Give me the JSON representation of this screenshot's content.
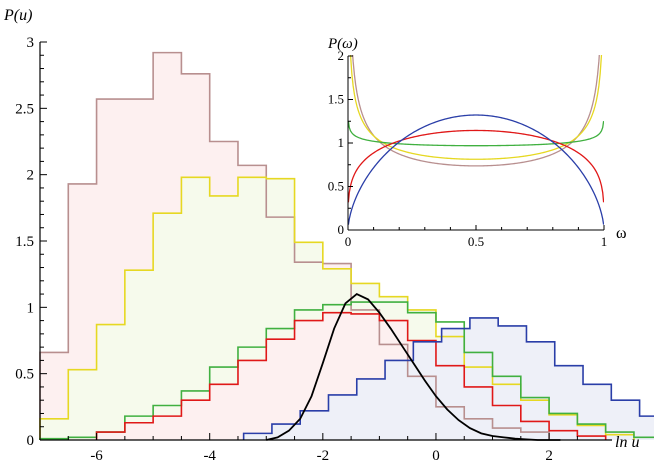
{
  "chart_data": [
    {
      "type": "histogram",
      "xlabel": "ln u",
      "ylabel": "P(u)",
      "xlim": [
        -7,
        2.9
      ],
      "ylim": [
        0,
        3
      ],
      "xticks": [
        "-6",
        "-4",
        "-2",
        "0",
        "2"
      ],
      "xtick_values": [
        -6,
        -4,
        -2,
        0,
        2
      ],
      "yticks": [
        "0",
        "0.5",
        "1",
        "1.5",
        "2",
        "2.5",
        "3"
      ],
      "ytick_values": [
        0,
        0.5,
        1,
        1.5,
        2,
        2.5,
        3
      ],
      "bin_width": 0.5,
      "series": [
        {
          "color": "#b88f8f",
          "fill": "#fdf0f0",
          "start": -7,
          "values": [
            0.66,
            1.93,
            2.57,
            2.57,
            2.92,
            2.76,
            2.25,
            2.07,
            1.68,
            1.34,
            1.33,
            0.98,
            0.72,
            0.48,
            0.25,
            0.16,
            0.09,
            0.06
          ]
        },
        {
          "color": "#e6d822",
          "fill": "#f6faec",
          "start": -7,
          "values": [
            0.16,
            0.53,
            0.87,
            1.28,
            1.71,
            1.98,
            1.84,
            1.98,
            1.97,
            1.49,
            1.29,
            1.18,
            1.08,
            0.98,
            0.78,
            0.55,
            0.42,
            0.3,
            0.19,
            0.11,
            0.04
          ]
        },
        {
          "color": "#40b040",
          "start": -7,
          "values": [
            0.01,
            0.02,
            0.06,
            0.18,
            0.26,
            0.37,
            0.55,
            0.7,
            0.84,
            0.98,
            1.02,
            1.04,
            1.04,
            0.96,
            0.89,
            0.66,
            0.48,
            0.32,
            0.2,
            0.12,
            0.06,
            0.02
          ]
        },
        {
          "color": "#e01818",
          "fill": "#fdf0f0",
          "start": -6,
          "values": [
            0.06,
            0.13,
            0.18,
            0.3,
            0.42,
            0.6,
            0.76,
            0.9,
            0.96,
            0.95,
            0.9,
            0.75,
            0.56,
            0.4,
            0.26,
            0.14,
            0.07,
            0.03
          ]
        },
        {
          "color": "#2a3ea8",
          "fill": "#eef0f8",
          "start": -3.4,
          "values": [
            0.05,
            0.12,
            0.22,
            0.34,
            0.46,
            0.6,
            0.74,
            0.84,
            0.92,
            0.86,
            0.74,
            0.56,
            0.42,
            0.3,
            0.18,
            0.1,
            0.05
          ]
        }
      ],
      "curve": {
        "color": "#000000",
        "x": [
          -3.0,
          -2.8,
          -2.6,
          -2.4,
          -2.2,
          -2.0,
          -1.8,
          -1.6,
          -1.4,
          -1.2,
          -1.0,
          -0.8,
          -0.6,
          -0.4,
          -0.2,
          0.0,
          0.2,
          0.4,
          0.6,
          0.8,
          1.0,
          1.2,
          1.4,
          1.6,
          1.8,
          2.0,
          2.2
        ],
        "y": [
          0.0,
          0.02,
          0.07,
          0.16,
          0.33,
          0.58,
          0.84,
          1.03,
          1.1,
          1.06,
          0.96,
          0.84,
          0.71,
          0.58,
          0.45,
          0.33,
          0.23,
          0.15,
          0.09,
          0.05,
          0.03,
          0.02,
          0.01,
          0.005,
          0.0,
          0.0,
          0.0
        ]
      }
    },
    {
      "type": "line",
      "xlabel": "ω",
      "ylabel": "P(ω)",
      "xlim": [
        0,
        1
      ],
      "ylim": [
        0,
        2
      ],
      "xticks": [
        "0",
        "0.5",
        "1"
      ],
      "xtick_values": [
        0,
        0.5,
        1
      ],
      "yticks": [
        "0",
        "0.5",
        "1",
        "1.5",
        "2"
      ],
      "ytick_values": [
        0,
        0.5,
        1,
        1.5,
        2
      ],
      "series": [
        {
          "color": "#b88f8f",
          "alpha": 0.62
        },
        {
          "color": "#e6d822",
          "alpha": 0.72
        },
        {
          "color": "#40b040",
          "alpha": 0.95
        },
        {
          "color": "#e01818",
          "alpha": 1.25
        },
        {
          "color": "#2a3ea8",
          "alpha": 1.6
        }
      ]
    }
  ]
}
